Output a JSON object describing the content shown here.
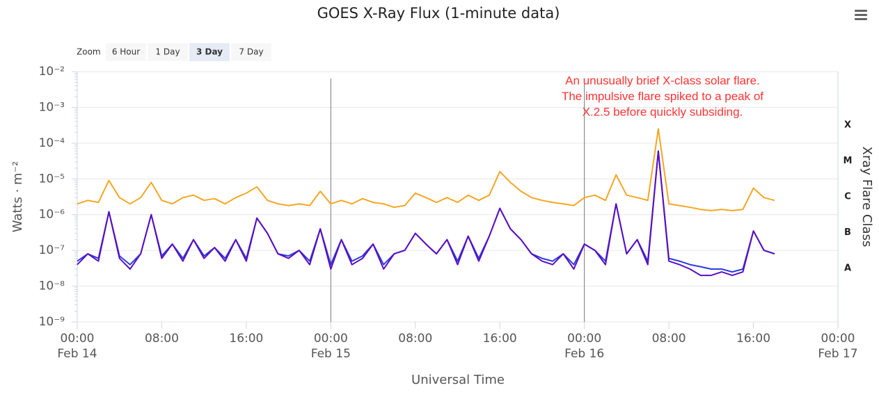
{
  "chart_data": {
    "type": "line",
    "title": "GOES X-Ray Flux (1-minute data)",
    "xlabel": "Universal Time",
    "ylabel": "Watts · m⁻²",
    "y2label": "Xray Flare Class",
    "zoom": {
      "label": "Zoom",
      "buttons": [
        "6 Hour",
        "1 Day",
        "3 Day",
        "7 Day"
      ],
      "selected": 2
    },
    "annotation": [
      "An unusually brief X-class solar flare.",
      "The impulsive flare spiked to a peak of",
      "X.2.5 before quickly subsiding."
    ],
    "annotation_color": "#ff3333",
    "log_y": true,
    "grid": true,
    "xlim": [
      0,
      72
    ],
    "xticks": [
      {
        "value": 0,
        "label": "00:00\nFeb 14"
      },
      {
        "value": 8,
        "label": "08:00"
      },
      {
        "value": 16,
        "label": "16:00"
      },
      {
        "value": 24,
        "label": "00:00\nFeb 15"
      },
      {
        "value": 32,
        "label": "08:00"
      },
      {
        "value": 40,
        "label": "16:00"
      },
      {
        "value": 48,
        "label": "00:00\nFeb 16"
      },
      {
        "value": 56,
        "label": "08:00"
      },
      {
        "value": 64,
        "label": "16:00"
      },
      {
        "value": 72,
        "label": "00:00\nFeb 17"
      }
    ],
    "plot_lines": [
      24,
      48
    ],
    "ylim": [
      1e-09,
      0.01
    ],
    "yticks": [
      {
        "value": 0.01,
        "label": "10⁻²"
      },
      {
        "value": 0.001,
        "label": "10⁻³"
      },
      {
        "value": 0.0001,
        "label": "10⁻⁴"
      },
      {
        "value": 1e-05,
        "label": "10⁻⁵"
      },
      {
        "value": 1e-06,
        "label": "10⁻⁶"
      },
      {
        "value": 1e-07,
        "label": "10⁻⁷"
      },
      {
        "value": 1e-08,
        "label": "10⁻⁸"
      },
      {
        "value": 1e-09,
        "label": "10⁻⁹"
      }
    ],
    "flare_classes": [
      {
        "value": 0.0001,
        "label": "X"
      },
      {
        "value": 1e-05,
        "label": "M"
      },
      {
        "value": 1e-06,
        "label": "C"
      },
      {
        "value": 1e-07,
        "label": "B"
      },
      {
        "value": 1e-08,
        "label": "A"
      }
    ],
    "x": [
      0,
      1,
      2,
      3,
      4,
      5,
      6,
      7,
      8,
      9,
      10,
      11,
      12,
      13,
      14,
      15,
      16,
      17,
      18,
      19,
      20,
      21,
      22,
      23,
      24,
      25,
      26,
      27,
      28,
      29,
      30,
      31,
      32,
      33,
      34,
      35,
      36,
      37,
      38,
      39,
      40,
      41,
      42,
      43,
      44,
      45,
      46,
      47,
      48,
      49,
      50,
      51,
      52,
      53,
      54,
      55,
      56,
      57,
      58,
      59,
      60,
      61,
      62,
      63,
      64,
      65,
      66
    ],
    "series": [
      {
        "color": "#f5a623",
        "values": [
          2e-06,
          2.5e-06,
          2.2e-06,
          9e-06,
          3e-06,
          2e-06,
          3e-06,
          8e-06,
          2.5e-06,
          2e-06,
          3e-06,
          3.5e-06,
          2.5e-06,
          2.8e-06,
          2e-06,
          3e-06,
          4e-06,
          6e-06,
          2.5e-06,
          2e-06,
          1.8e-06,
          2e-06,
          1.8e-06,
          4.5e-06,
          2e-06,
          2.5e-06,
          2e-06,
          2.8e-06,
          2.2e-06,
          2e-06,
          1.6e-06,
          1.8e-06,
          4e-06,
          3e-06,
          2.2e-06,
          3e-06,
          2.2e-06,
          3.5e-06,
          2.5e-06,
          3.5e-06,
          1.6e-05,
          8e-06,
          4.5e-06,
          3e-06,
          2.5e-06,
          2.2e-06,
          2e-06,
          1.8e-06,
          3e-06,
          3.5e-06,
          2.5e-06,
          1.3e-05,
          3.5e-06,
          3e-06,
          2.5e-06,
          0.00025,
          2e-06,
          1.8e-06,
          1.6e-06,
          1.4e-06,
          1.3e-06,
          1.4e-06,
          1.3e-06,
          1.4e-06,
          5.5e-06,
          3e-06,
          2.5e-06
        ]
      },
      {
        "color": "#2b3be0",
        "values": [
          5e-08,
          8e-08,
          6e-08,
          1.2e-06,
          7e-08,
          4e-08,
          8e-08,
          1e-06,
          7e-08,
          1.5e-07,
          6e-08,
          2e-07,
          7e-08,
          1.2e-07,
          6e-08,
          2e-07,
          6e-08,
          8e-07,
          3e-07,
          8e-08,
          7e-08,
          1e-07,
          5e-08,
          4e-07,
          4e-08,
          2e-07,
          5e-08,
          7e-08,
          1.5e-07,
          4e-08,
          8e-08,
          1e-07,
          3e-07,
          1.5e-07,
          8e-08,
          2e-07,
          5e-08,
          2.5e-07,
          6e-08,
          2.5e-07,
          1.5e-06,
          4e-07,
          2e-07,
          8e-08,
          6e-08,
          5e-08,
          8e-08,
          4e-08,
          1.5e-07,
          1e-07,
          5e-08,
          2e-06,
          8e-08,
          2e-07,
          5e-08,
          6e-05,
          6e-08,
          5e-08,
          4e-08,
          3.5e-08,
          3e-08,
          3e-08,
          2.5e-08,
          3e-08,
          3.5e-07,
          1e-07,
          8e-08
        ]
      },
      {
        "color": "#5b0fbf",
        "values": [
          4e-08,
          8e-08,
          5e-08,
          1.2e-06,
          6e-08,
          3e-08,
          8e-08,
          1e-06,
          6e-08,
          1.5e-07,
          5e-08,
          2e-07,
          6e-08,
          1.2e-07,
          5e-08,
          2e-07,
          5e-08,
          8e-07,
          3e-07,
          8e-08,
          6e-08,
          1e-07,
          4e-08,
          4e-07,
          3e-08,
          2e-07,
          4e-08,
          6e-08,
          1.5e-07,
          3e-08,
          8e-08,
          1e-07,
          3e-07,
          1.5e-07,
          8e-08,
          2e-07,
          4e-08,
          2.5e-07,
          5e-08,
          2.5e-07,
          1.5e-06,
          4e-07,
          2e-07,
          8e-08,
          5e-08,
          4e-08,
          8e-08,
          3e-08,
          1.5e-07,
          1e-07,
          4e-08,
          2e-06,
          8e-08,
          2e-07,
          4e-08,
          6e-05,
          5e-08,
          4e-08,
          3e-08,
          2e-08,
          2e-08,
          2.5e-08,
          2e-08,
          2.5e-08,
          3.5e-07,
          1e-07,
          8e-08
        ]
      }
    ]
  }
}
